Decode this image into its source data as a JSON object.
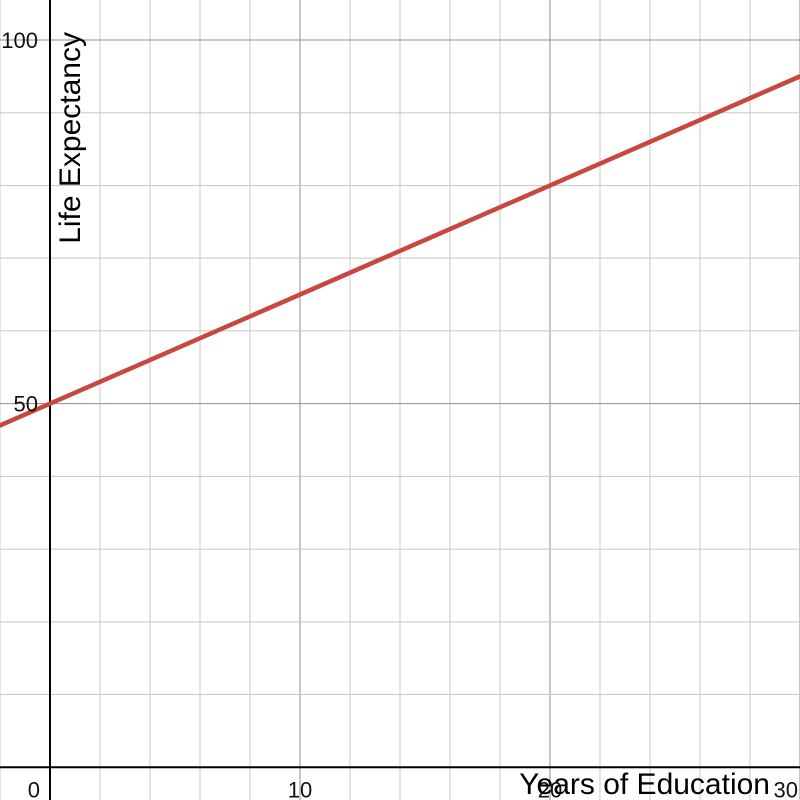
{
  "chart_data": {
    "type": "line",
    "title": "",
    "xlabel": "Years of Education",
    "ylabel": "Life Expectancy",
    "xlim": [
      -2,
      30
    ],
    "ylim": [
      -4.5,
      105.5
    ],
    "x_ticks": [
      {
        "value": 0,
        "label": "0"
      },
      {
        "value": 10,
        "label": "10"
      },
      {
        "value": 20,
        "label": "20"
      },
      {
        "value": 30,
        "label": "30"
      }
    ],
    "y_ticks": [
      {
        "value": 50,
        "label": "50"
      },
      {
        "value": 100,
        "label": "100"
      }
    ],
    "grid": true,
    "grid_minor_step": {
      "x": 2,
      "y": 10
    },
    "grid_major_step": {
      "x": 10,
      "y": 50
    },
    "series": [
      {
        "x": [
          -2,
          30
        ],
        "y": [
          47,
          95
        ],
        "color": "#c8473f"
      }
    ]
  }
}
